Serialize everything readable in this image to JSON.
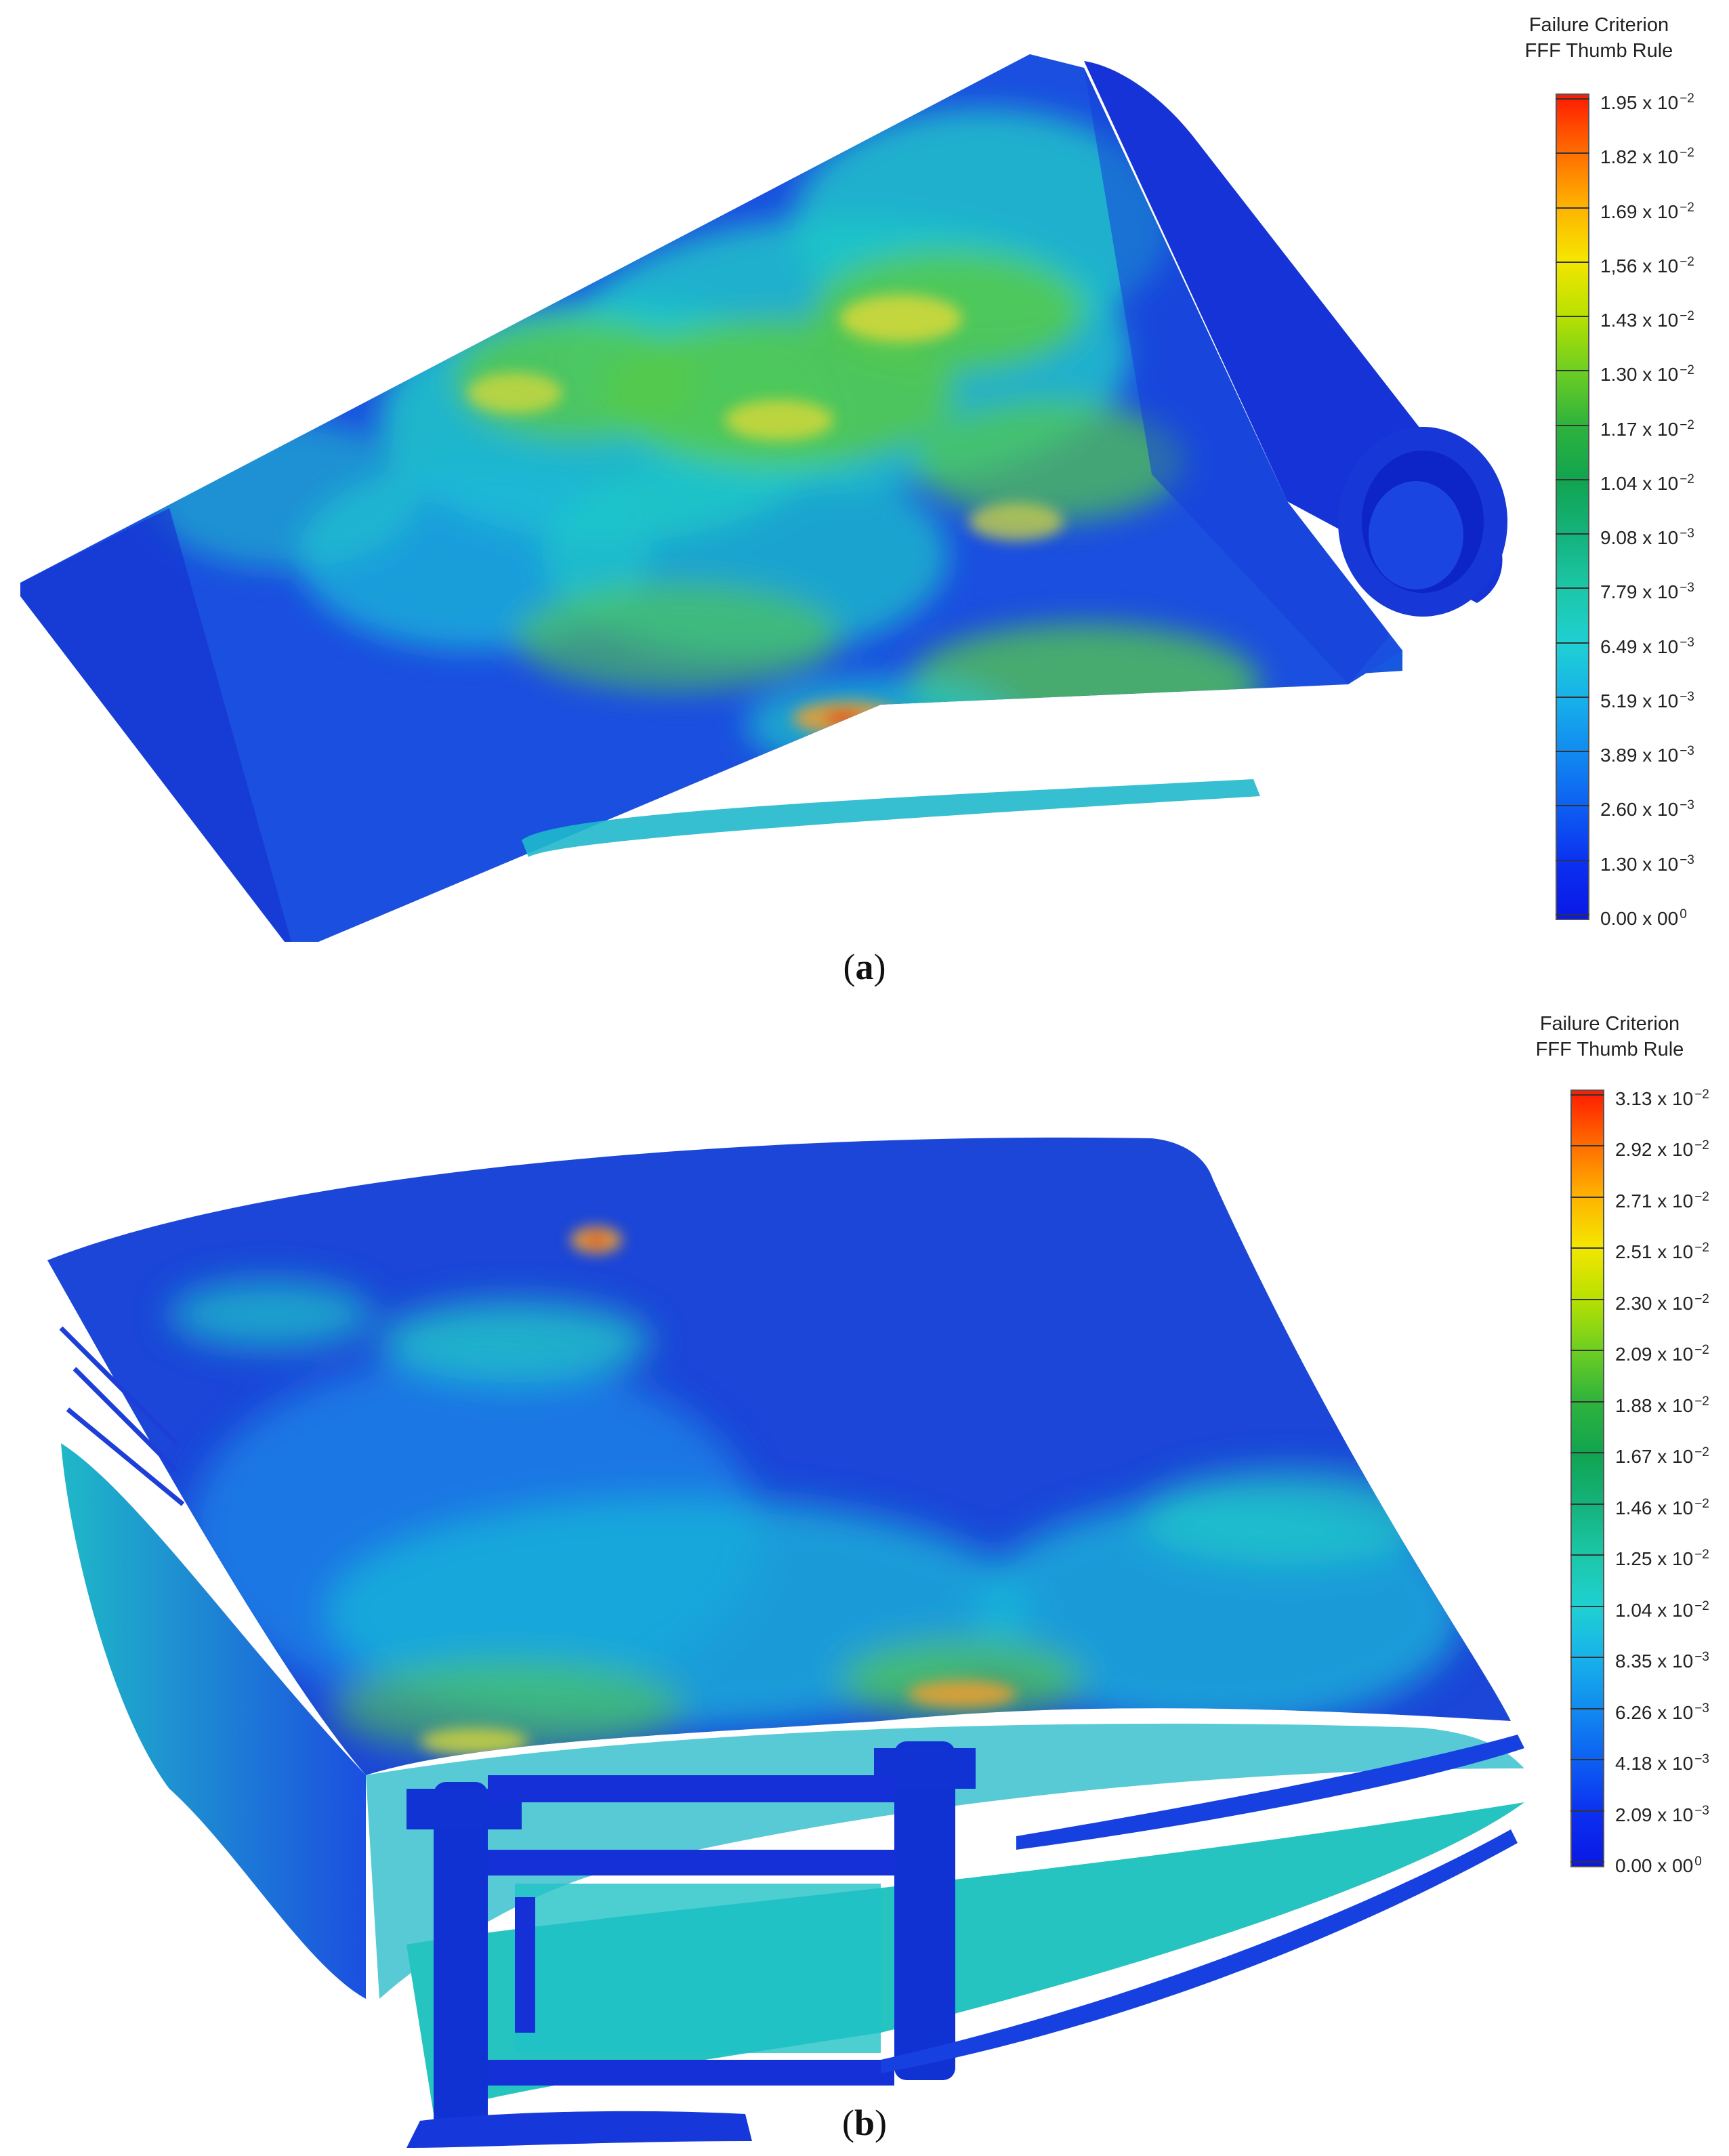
{
  "panels": [
    {
      "caption_letter": "a",
      "legend": {
        "title_line1": "Failure Criterion",
        "title_line2": "FFF Thumb Rule",
        "ticks": [
          {
            "mantissa": "1.95",
            "exp": "-2"
          },
          {
            "mantissa": "1.82",
            "exp": "-2"
          },
          {
            "mantissa": "1.69",
            "exp": "-2"
          },
          {
            "mantissa": "1,56",
            "exp": "-2"
          },
          {
            "mantissa": "1.43",
            "exp": "-2"
          },
          {
            "mantissa": "1.30",
            "exp": "-2"
          },
          {
            "mantissa": "1.17",
            "exp": "-2"
          },
          {
            "mantissa": "1.04",
            "exp": "-2"
          },
          {
            "mantissa": "9.08",
            "exp": "-3"
          },
          {
            "mantissa": "7.79",
            "exp": "-3"
          },
          {
            "mantissa": "6.49",
            "exp": "-3"
          },
          {
            "mantissa": "5.19",
            "exp": "-3"
          },
          {
            "mantissa": "3.89",
            "exp": "-3"
          },
          {
            "mantissa": "2.60",
            "exp": "-3"
          },
          {
            "mantissa": "1.30",
            "exp": "-3"
          },
          {
            "mantissa": "0.00",
            "base": "00",
            "exp": "0"
          }
        ]
      }
    },
    {
      "caption_letter": "b",
      "legend": {
        "title_line1": "Failure Criterion",
        "title_line2": "FFF Thumb Rule",
        "ticks": [
          {
            "mantissa": "3.13",
            "exp": "-2"
          },
          {
            "mantissa": "2.92",
            "exp": "-2"
          },
          {
            "mantissa": "2.71",
            "exp": "-2"
          },
          {
            "mantissa": "2.51",
            "exp": "-2"
          },
          {
            "mantissa": "2.30",
            "exp": "-2"
          },
          {
            "mantissa": "2.09",
            "exp": "-2"
          },
          {
            "mantissa": "1.88",
            "exp": "-2"
          },
          {
            "mantissa": "1.67",
            "exp": "-2"
          },
          {
            "mantissa": "1.46",
            "exp": "-2"
          },
          {
            "mantissa": "1.25",
            "exp": "-2"
          },
          {
            "mantissa": "1.04",
            "exp": "-2"
          },
          {
            "mantissa": "8.35",
            "exp": "-3"
          },
          {
            "mantissa": "6.26",
            "exp": "-3"
          },
          {
            "mantissa": "4.18",
            "exp": "-3"
          },
          {
            "mantissa": "2.09",
            "exp": "-3"
          },
          {
            "mantissa": "0.00",
            "base": "00",
            "exp": "0"
          }
        ]
      }
    }
  ],
  "colormap": [
    "#ff1a00",
    "#ff6a00",
    "#ffb000",
    "#f5e600",
    "#b9e100",
    "#6fcf20",
    "#2fb33c",
    "#11a44f",
    "#14b27c",
    "#1cc7a8",
    "#1fd0d3",
    "#17b1ea",
    "#1189f0",
    "#0d5df2",
    "#0b2ff0",
    "#0a18e6"
  ],
  "colors": {
    "model_base": "#1b3fd0",
    "model_dark": "#0a1fb0",
    "field_cyan": "#1fc8c8",
    "field_green": "#56c94a",
    "field_yellow": "#d8d83a",
    "field_orange": "#f0a030",
    "field_red": "#e23a1a"
  }
}
